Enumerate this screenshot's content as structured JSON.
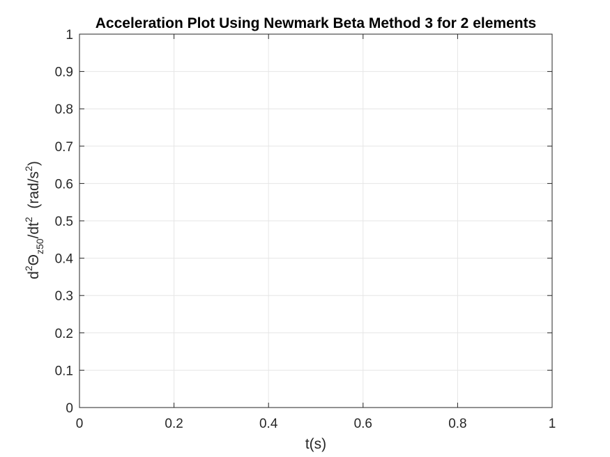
{
  "chart_data": {
    "type": "line",
    "title": "Acceleration Plot Using Newmark Beta Method 3 for 2 elements",
    "xlabel": "t(s)",
    "ylabel": {
      "prefix": "d",
      "sup1": "2",
      "symbol": "Θ",
      "sub": "z50",
      "mid": "/dt",
      "sup2": "2",
      "unit_open": "  (rad/s",
      "sup3": "2",
      "unit_close": ")"
    },
    "xlim": [
      0,
      1
    ],
    "ylim": [
      0,
      1
    ],
    "xticks": [
      0,
      0.2,
      0.4,
      0.6,
      0.8,
      1
    ],
    "xtick_labels": [
      "0",
      "0.2",
      "0.4",
      "0.6",
      "0.8",
      "1"
    ],
    "yticks": [
      0,
      0.1,
      0.2,
      0.3,
      0.4,
      0.5,
      0.6,
      0.7,
      0.8,
      0.9,
      1
    ],
    "ytick_labels": [
      "0",
      "0.1",
      "0.2",
      "0.3",
      "0.4",
      "0.5",
      "0.6",
      "0.7",
      "0.8",
      "0.9",
      "1"
    ],
    "grid": true,
    "series": [],
    "colors": {
      "grid": "#e6e6e6",
      "axis": "#262626",
      "background": "#ffffff"
    }
  }
}
